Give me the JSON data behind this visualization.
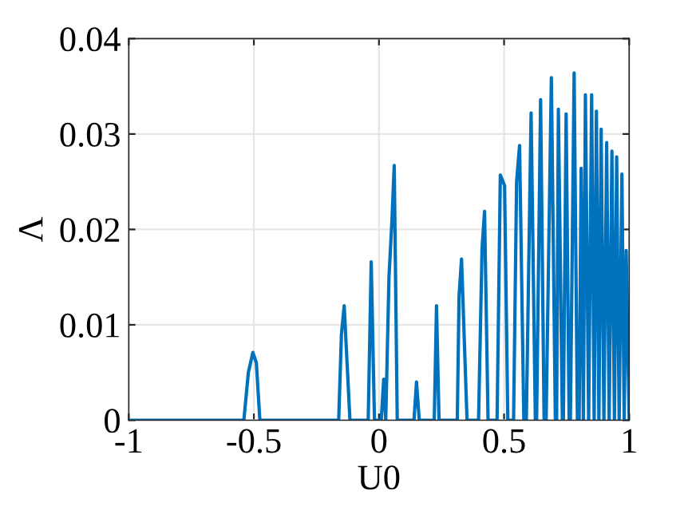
{
  "chart_data": {
    "type": "line",
    "xlabel": "U0",
    "ylabel": "Λ",
    "xlim": [
      -1,
      1
    ],
    "ylim": [
      0,
      0.04
    ],
    "xticks": [
      -1,
      -0.5,
      0,
      0.5,
      1
    ],
    "yticks": [
      0,
      0.01,
      0.02,
      0.03,
      0.04
    ],
    "grid": true,
    "marker": "none",
    "line_style": "solid",
    "series": [
      {
        "color": "#0072bd",
        "x": [
          -1,
          -0.54,
          -0.522,
          -0.504,
          -0.49,
          -0.476,
          -0.161,
          -0.15,
          -0.139,
          -0.116,
          -0.043,
          -0.031,
          -0.018,
          0.009,
          0.019,
          0.027,
          0.04,
          0.052,
          0.061,
          0.073,
          0.14,
          0.15,
          0.161,
          0.221,
          0.23,
          0.24,
          0.313,
          0.32,
          0.33,
          0.352,
          0.398,
          0.412,
          0.422,
          0.436,
          0.472,
          0.485,
          0.502,
          0.515,
          0.538,
          0.55,
          0.562,
          0.579,
          0.589,
          0.608,
          0.625,
          0.63,
          0.646,
          0.66,
          0.668,
          0.689,
          0.705,
          0.71,
          0.717,
          0.733,
          0.737,
          0.748,
          0.76,
          0.765,
          0.78,
          0.793,
          0.8,
          0.808,
          0.817,
          0.825,
          0.838,
          0.85,
          0.86,
          0.869,
          0.879,
          0.888,
          0.899,
          0.91,
          0.92,
          0.931,
          0.941,
          0.95,
          0.96,
          0.971,
          0.98,
          0.988,
          1
        ],
        "values": [
          0,
          0,
          0.005,
          0.0071,
          0.006,
          0,
          0,
          0.009,
          0.012,
          0,
          0,
          0.0166,
          0,
          0,
          0.0043,
          0,
          0.015,
          0.021,
          0.0267,
          0,
          0,
          0.004,
          0,
          0,
          0.012,
          0,
          0,
          0.013,
          0.0169,
          0,
          0,
          0.018,
          0.0219,
          0,
          0,
          0.0257,
          0.0246,
          0,
          0,
          0.025,
          0.0288,
          0,
          0,
          0.0322,
          0,
          0,
          0.0336,
          0,
          0,
          0.0359,
          0,
          0,
          0.0326,
          0,
          0,
          0.0321,
          0,
          0,
          0.0364,
          0,
          0,
          0.0264,
          0,
          0.0341,
          0,
          0.0341,
          0,
          0.0324,
          0,
          0.0305,
          0,
          0.0291,
          0,
          0.0282,
          0,
          0.0276,
          0,
          0.0258,
          0,
          0.0178,
          0
        ]
      }
    ]
  }
}
